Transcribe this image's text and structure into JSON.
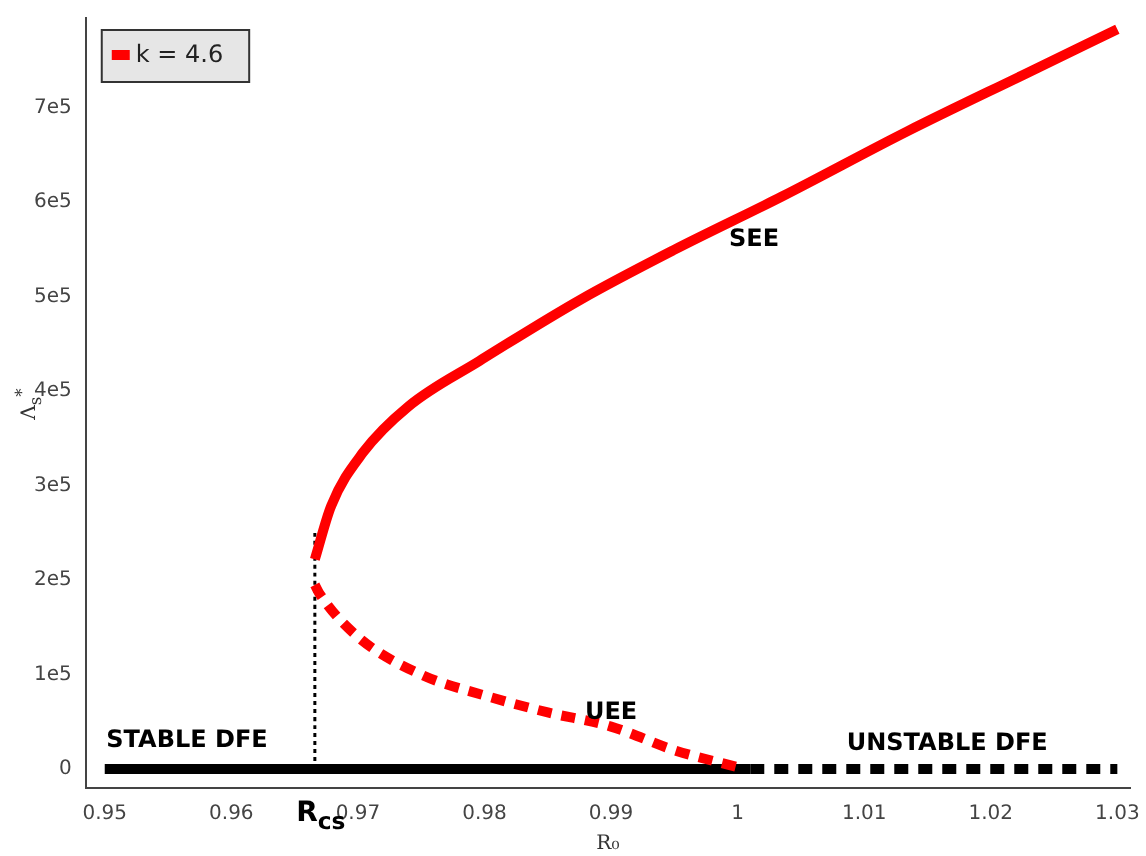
{
  "chart_data": {
    "type": "line",
    "xlabel": "R₀",
    "ylabel": "Λ$_{s}$$^{*}$",
    "legend": "top left",
    "grid": false,
    "xlim": [
      0.9485,
      1.031
    ],
    "ylim": [
      -20000,
      795000
    ],
    "xticks": [
      0.95,
      0.96,
      0.97,
      0.98,
      0.99,
      1,
      1.01,
      1.02,
      1.03
    ],
    "yticks": [
      0,
      {
        "value": 100000,
        "label": "1e5"
      },
      {
        "value": 200000,
        "label": "2e5"
      },
      {
        "value": 300000,
        "label": "3e5"
      },
      {
        "value": 400000,
        "label": "4e5"
      },
      {
        "value": 500000,
        "label": "5e5"
      },
      {
        "value": 600000,
        "label": "6e5"
      },
      {
        "value": 700000,
        "label": "7e5"
      }
    ],
    "series": [
      {
        "name": "k = 4.6",
        "color": "#ff0000",
        "line_style": "solid",
        "x": [
          0.9666,
          0.9679,
          0.9704,
          0.974,
          0.9796,
          0.9876,
          0.9949,
          1.0035,
          1.0134,
          1.0226,
          1.03
        ],
        "values": [
          222000,
          279000,
          335000,
          384000,
          432000,
          497000,
          549000,
          606000,
          675000,
          735000,
          783000
        ]
      },
      {
        "color": "#ff0000",
        "line_style": "dashed",
        "x": [
          0.9666,
          0.967,
          0.97,
          0.975,
          0.98,
          0.985,
          0.99,
          0.995,
          1.0
        ],
        "values": [
          195000,
          185000,
          140000,
          100000,
          78000,
          60000,
          45000,
          20000,
          2000
        ]
      },
      {
        "color": "#000000",
        "line_style": "solid",
        "x": [
          0.95,
          1.001
        ],
        "values": [
          0,
          0
        ]
      },
      {
        "color": "#000000",
        "line_style": "dashed",
        "x": [
          1.001,
          1.03
        ],
        "values": [
          0,
          0
        ]
      },
      {
        "color": "#000000",
        "line_style": "dotted",
        "x": [
          0.9666,
          0.9666
        ],
        "values": [
          250000,
          0
        ]
      }
    ],
    "annotations": [
      {
        "text": "STABLE DFE",
        "x": 0.9565,
        "y": 15000
      },
      {
        "text": "UEE",
        "x": 0.99,
        "y": 45000
      },
      "SEE",
      "UNSTABLE DFE",
      "R$_{cs}$"
    ]
  }
}
